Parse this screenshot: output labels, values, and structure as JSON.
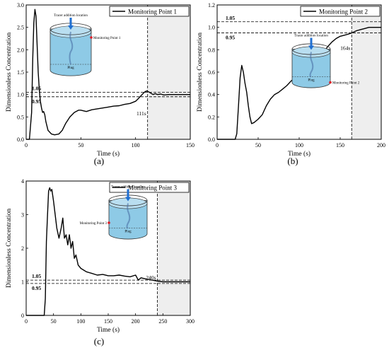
{
  "chart_data": [
    {
      "type": "line",
      "panel_label": "(a)",
      "xlabel": "Time (s)",
      "ylabel": "Dimensionless Concentration",
      "xlim": [
        0,
        150
      ],
      "ylim": [
        0,
        3.0
      ],
      "xticks": [
        0,
        50,
        100,
        150
      ],
      "yticks": [
        0.0,
        0.5,
        1.0,
        1.5,
        2.0,
        2.5,
        3.0
      ],
      "series": [
        {
          "name": "Monitoring Point 1",
          "x": [
            0,
            3,
            5,
            6,
            7,
            8,
            9,
            10,
            11,
            12,
            13,
            14,
            15,
            16,
            17,
            18,
            20,
            23,
            26,
            30,
            33,
            36,
            40,
            44,
            48,
            50,
            55,
            60,
            65,
            70,
            75,
            80,
            85,
            90,
            95,
            100,
            103,
            106,
            108,
            110,
            112,
            114,
            116,
            118,
            120,
            123,
            126,
            130,
            135,
            140,
            145,
            150
          ],
          "y": [
            0,
            0,
            0.6,
            1.8,
            2.6,
            2.9,
            2.75,
            2.1,
            1.5,
            1.1,
            0.85,
            0.7,
            0.6,
            0.62,
            0.55,
            0.4,
            0.2,
            0.12,
            0.1,
            0.12,
            0.2,
            0.35,
            0.5,
            0.6,
            0.65,
            0.65,
            0.62,
            0.66,
            0.68,
            0.7,
            0.72,
            0.74,
            0.75,
            0.78,
            0.8,
            0.85,
            0.92,
            1.0,
            1.05,
            1.08,
            1.06,
            1.03,
            1.0,
            1.02,
            1.0,
            1.01,
            0.99,
            1.0,
            1.0,
            1.0,
            1.0,
            1.0
          ]
        }
      ],
      "ref_lines": [
        1.05,
        0.95
      ],
      "ref_labels": [
        "1.05",
        "0.95"
      ],
      "vline": 111,
      "vline_label": "111s",
      "inset_labels": {
        "tracer": "Tracer addition location",
        "plug": "Plug",
        "monitor": "Monitoring Point 1"
      },
      "inset_marker_side": "right",
      "legend": "top-right"
    },
    {
      "type": "line",
      "panel_label": "(b)",
      "xlabel": "Time (s)",
      "ylabel": "Dimensionless Concentration",
      "xlim": [
        0,
        200
      ],
      "ylim": [
        0,
        1.2
      ],
      "xticks": [
        0,
        50,
        100,
        150,
        200
      ],
      "yticks": [
        0.0,
        0.2,
        0.4,
        0.6,
        0.8,
        1.0,
        1.2
      ],
      "series": [
        {
          "name": "Monitoring Point 2",
          "x": [
            0,
            22,
            24,
            26,
            28,
            30,
            32,
            34,
            36,
            38,
            40,
            42,
            45,
            50,
            55,
            60,
            65,
            70,
            75,
            80,
            85,
            90,
            95,
            100,
            105,
            110,
            115,
            120,
            125,
            130,
            135,
            140,
            145,
            150,
            155,
            160,
            164,
            170,
            175,
            180,
            185,
            190,
            195,
            200
          ],
          "y": [
            0,
            0,
            0.05,
            0.3,
            0.55,
            0.66,
            0.6,
            0.5,
            0.42,
            0.3,
            0.2,
            0.14,
            0.15,
            0.18,
            0.22,
            0.3,
            0.36,
            0.4,
            0.42,
            0.45,
            0.48,
            0.52,
            0.55,
            0.58,
            0.6,
            0.62,
            0.66,
            0.7,
            0.74,
            0.78,
            0.83,
            0.87,
            0.9,
            0.92,
            0.93,
            0.94,
            0.95,
            0.97,
            0.98,
            0.99,
            1.0,
            1.0,
            1.0,
            1.0
          ]
        }
      ],
      "ref_lines": [
        1.05,
        0.95
      ],
      "ref_labels": [
        "1.05",
        "0.95"
      ],
      "vline": 164,
      "vline_label": "164s",
      "inset_labels": {
        "tracer": "Tracer addition location",
        "plug": "Plug",
        "monitor": "Monitoring Point 2"
      },
      "inset_marker_side": "right",
      "legend": "top-right"
    },
    {
      "type": "line",
      "panel_label": "(c)",
      "xlabel": "Time (s)",
      "ylabel": "Dimensionless Concentration",
      "xlim": [
        0,
        300
      ],
      "ylim": [
        0,
        4
      ],
      "xticks": [
        0,
        50,
        100,
        150,
        200,
        250,
        300
      ],
      "yticks": [
        0,
        1,
        2,
        3,
        4
      ],
      "series": [
        {
          "name": "Monitoring Point 3",
          "x": [
            0,
            33,
            35,
            37,
            39,
            41,
            43,
            45,
            47,
            50,
            53,
            56,
            60,
            64,
            67,
            70,
            73,
            76,
            79,
            82,
            85,
            88,
            91,
            95,
            100,
            105,
            110,
            120,
            130,
            140,
            150,
            160,
            170,
            180,
            190,
            200,
            205,
            210,
            215,
            220,
            230,
            240,
            250,
            260,
            270,
            280,
            290,
            300
          ],
          "y": [
            0,
            0,
            0.5,
            2.2,
            3.0,
            3.7,
            3.8,
            3.7,
            3.75,
            3.4,
            3.0,
            2.6,
            2.3,
            2.6,
            2.9,
            2.3,
            2.4,
            2.1,
            2.4,
            2.0,
            2.2,
            1.7,
            1.8,
            1.5,
            1.4,
            1.35,
            1.3,
            1.25,
            1.2,
            1.22,
            1.18,
            1.18,
            1.2,
            1.17,
            1.15,
            1.2,
            1.05,
            1.12,
            1.1,
            1.08,
            1.05,
            1.02,
            1.0,
            1.0,
            1.0,
            1.0,
            1.0,
            1.0
          ]
        }
      ],
      "ref_lines": [
        1.05,
        0.95
      ],
      "ref_labels": [
        "1.05",
        "0.95"
      ],
      "vline": 240,
      "vline_label": "240s",
      "inset_labels": {
        "tracer": "Tracer addition location",
        "plug": "Plug",
        "monitor": "Monitoring Point 3"
      },
      "inset_marker_side": "left",
      "legend": "top-right"
    }
  ]
}
